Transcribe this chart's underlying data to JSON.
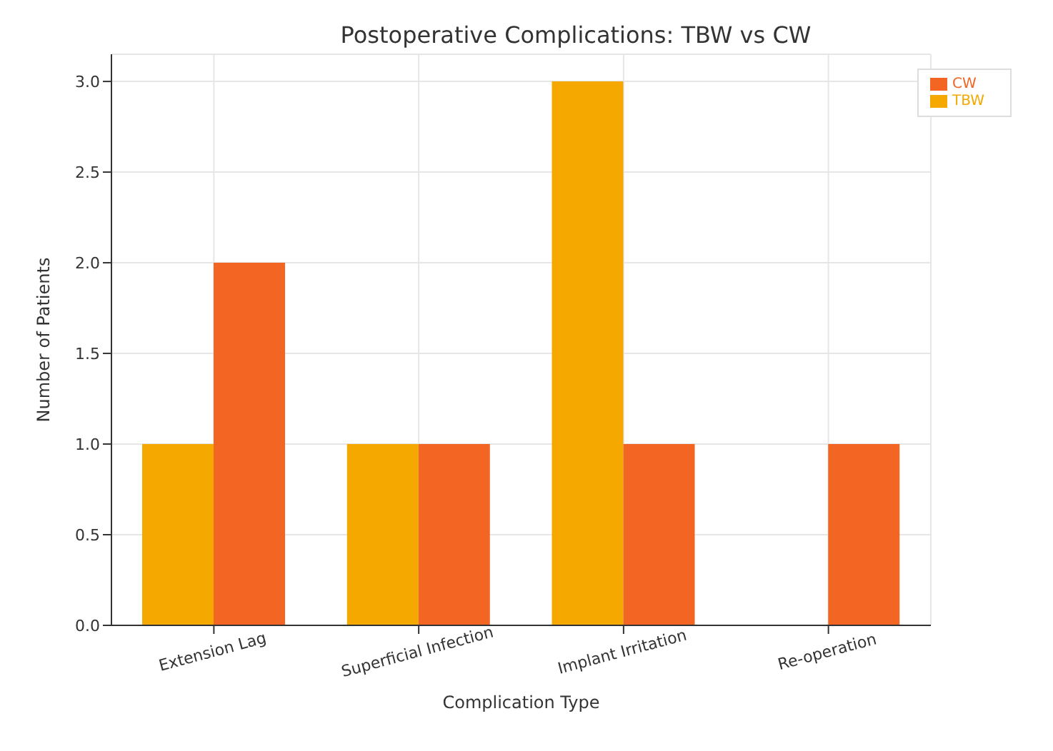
{
  "chart_data": {
    "type": "bar",
    "title": "Postoperative Complications: TBW vs CW",
    "xlabel": "Complication Type",
    "ylabel": "Number of Patients",
    "categories": [
      "Extension Lag",
      "Superficial Infection",
      "Implant Irritation",
      "Re-operation"
    ],
    "series": [
      {
        "name": "TBW",
        "color": "#f5a800",
        "values": [
          1,
          1,
          3,
          0
        ]
      },
      {
        "name": "CW",
        "color": "#f26522",
        "values": [
          2,
          1,
          1,
          1
        ]
      }
    ],
    "ylim": [
      0,
      3.15
    ],
    "yticks": [
      {
        "value": 0,
        "label": "0.0"
      },
      {
        "value": 0.5,
        "label": "0.5"
      },
      {
        "value": 1,
        "label": "1.0"
      },
      {
        "value": 1.5,
        "label": "1.5"
      },
      {
        "value": 2,
        "label": "2.0"
      },
      {
        "value": 2.5,
        "label": "2.5"
      },
      {
        "value": 3,
        "label": "3.0"
      }
    ],
    "grid": true,
    "legend": "top right"
  }
}
